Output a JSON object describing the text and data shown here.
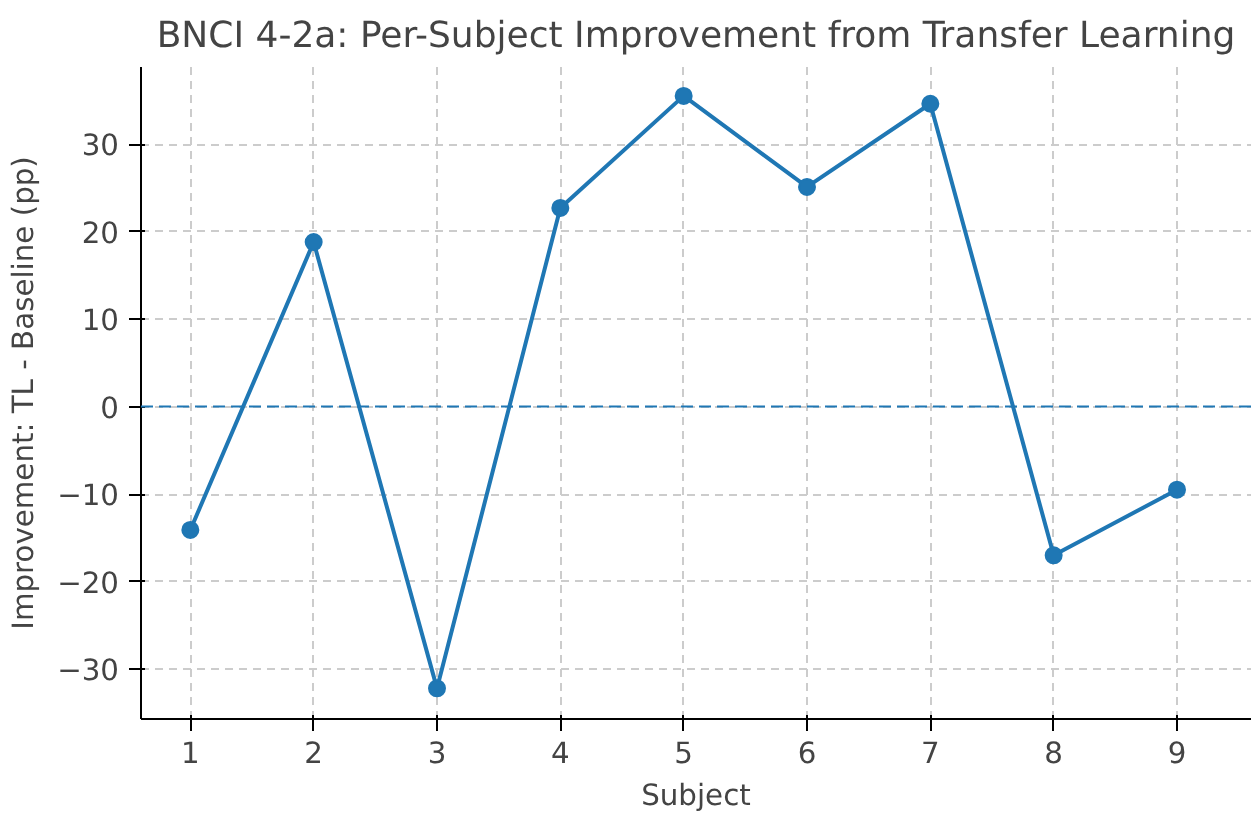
{
  "chart_data": {
    "type": "line",
    "title": "BNCI 4-2a: Per-Subject Improvement from Transfer Learning",
    "xlabel": "Subject",
    "ylabel": "Improvement: TL - Baseline (pp)",
    "x": [
      1,
      2,
      3,
      4,
      5,
      6,
      7,
      8,
      9
    ],
    "series": [
      {
        "color": "#1f77b4",
        "values": [
          -14.1,
          18.8,
          -32.2,
          22.7,
          35.5,
          25.1,
          34.6,
          -17.0,
          -9.5
        ]
      }
    ],
    "xlim": [
      0.6,
      9.6
    ],
    "xticks": [
      1,
      2,
      3,
      4,
      5,
      6,
      7,
      8,
      9
    ],
    "ylim": [
      -35.7,
      38.8
    ],
    "yticks": [
      -30,
      -20,
      -10,
      0,
      10,
      20,
      30
    ],
    "ref_lines": [
      {
        "axis": "y",
        "value": 0,
        "color": "#1f77b4",
        "line_style": "dashed"
      }
    ],
    "grid": true,
    "marker": "circle",
    "line_style": "solid"
  }
}
